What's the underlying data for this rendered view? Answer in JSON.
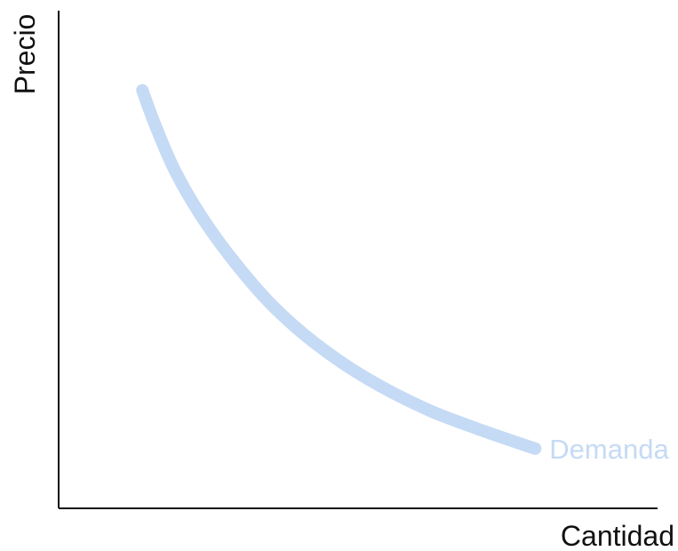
{
  "chart_data": {
    "type": "line",
    "xlabel": "Cantidad",
    "ylabel": "Precio",
    "grid": false,
    "series": [
      {
        "name": "Demanda",
        "color": "#c5daf4",
        "points": [
          {
            "x": 1.3,
            "y": 8.4
          },
          {
            "x": 1.5,
            "y": 7.7
          },
          {
            "x": 1.8,
            "y": 6.8
          },
          {
            "x": 2.2,
            "y": 5.9
          },
          {
            "x": 2.7,
            "y": 5.0
          },
          {
            "x": 3.3,
            "y": 4.1
          },
          {
            "x": 4.0,
            "y": 3.3
          },
          {
            "x": 4.8,
            "y": 2.6
          },
          {
            "x": 5.7,
            "y": 2.0
          },
          {
            "x": 6.5,
            "y": 1.6
          },
          {
            "x": 7.4,
            "y": 1.2
          }
        ]
      }
    ],
    "xlim": [
      0,
      9.3
    ],
    "ylim": [
      0,
      10
    ],
    "axis_color": "#111111"
  }
}
